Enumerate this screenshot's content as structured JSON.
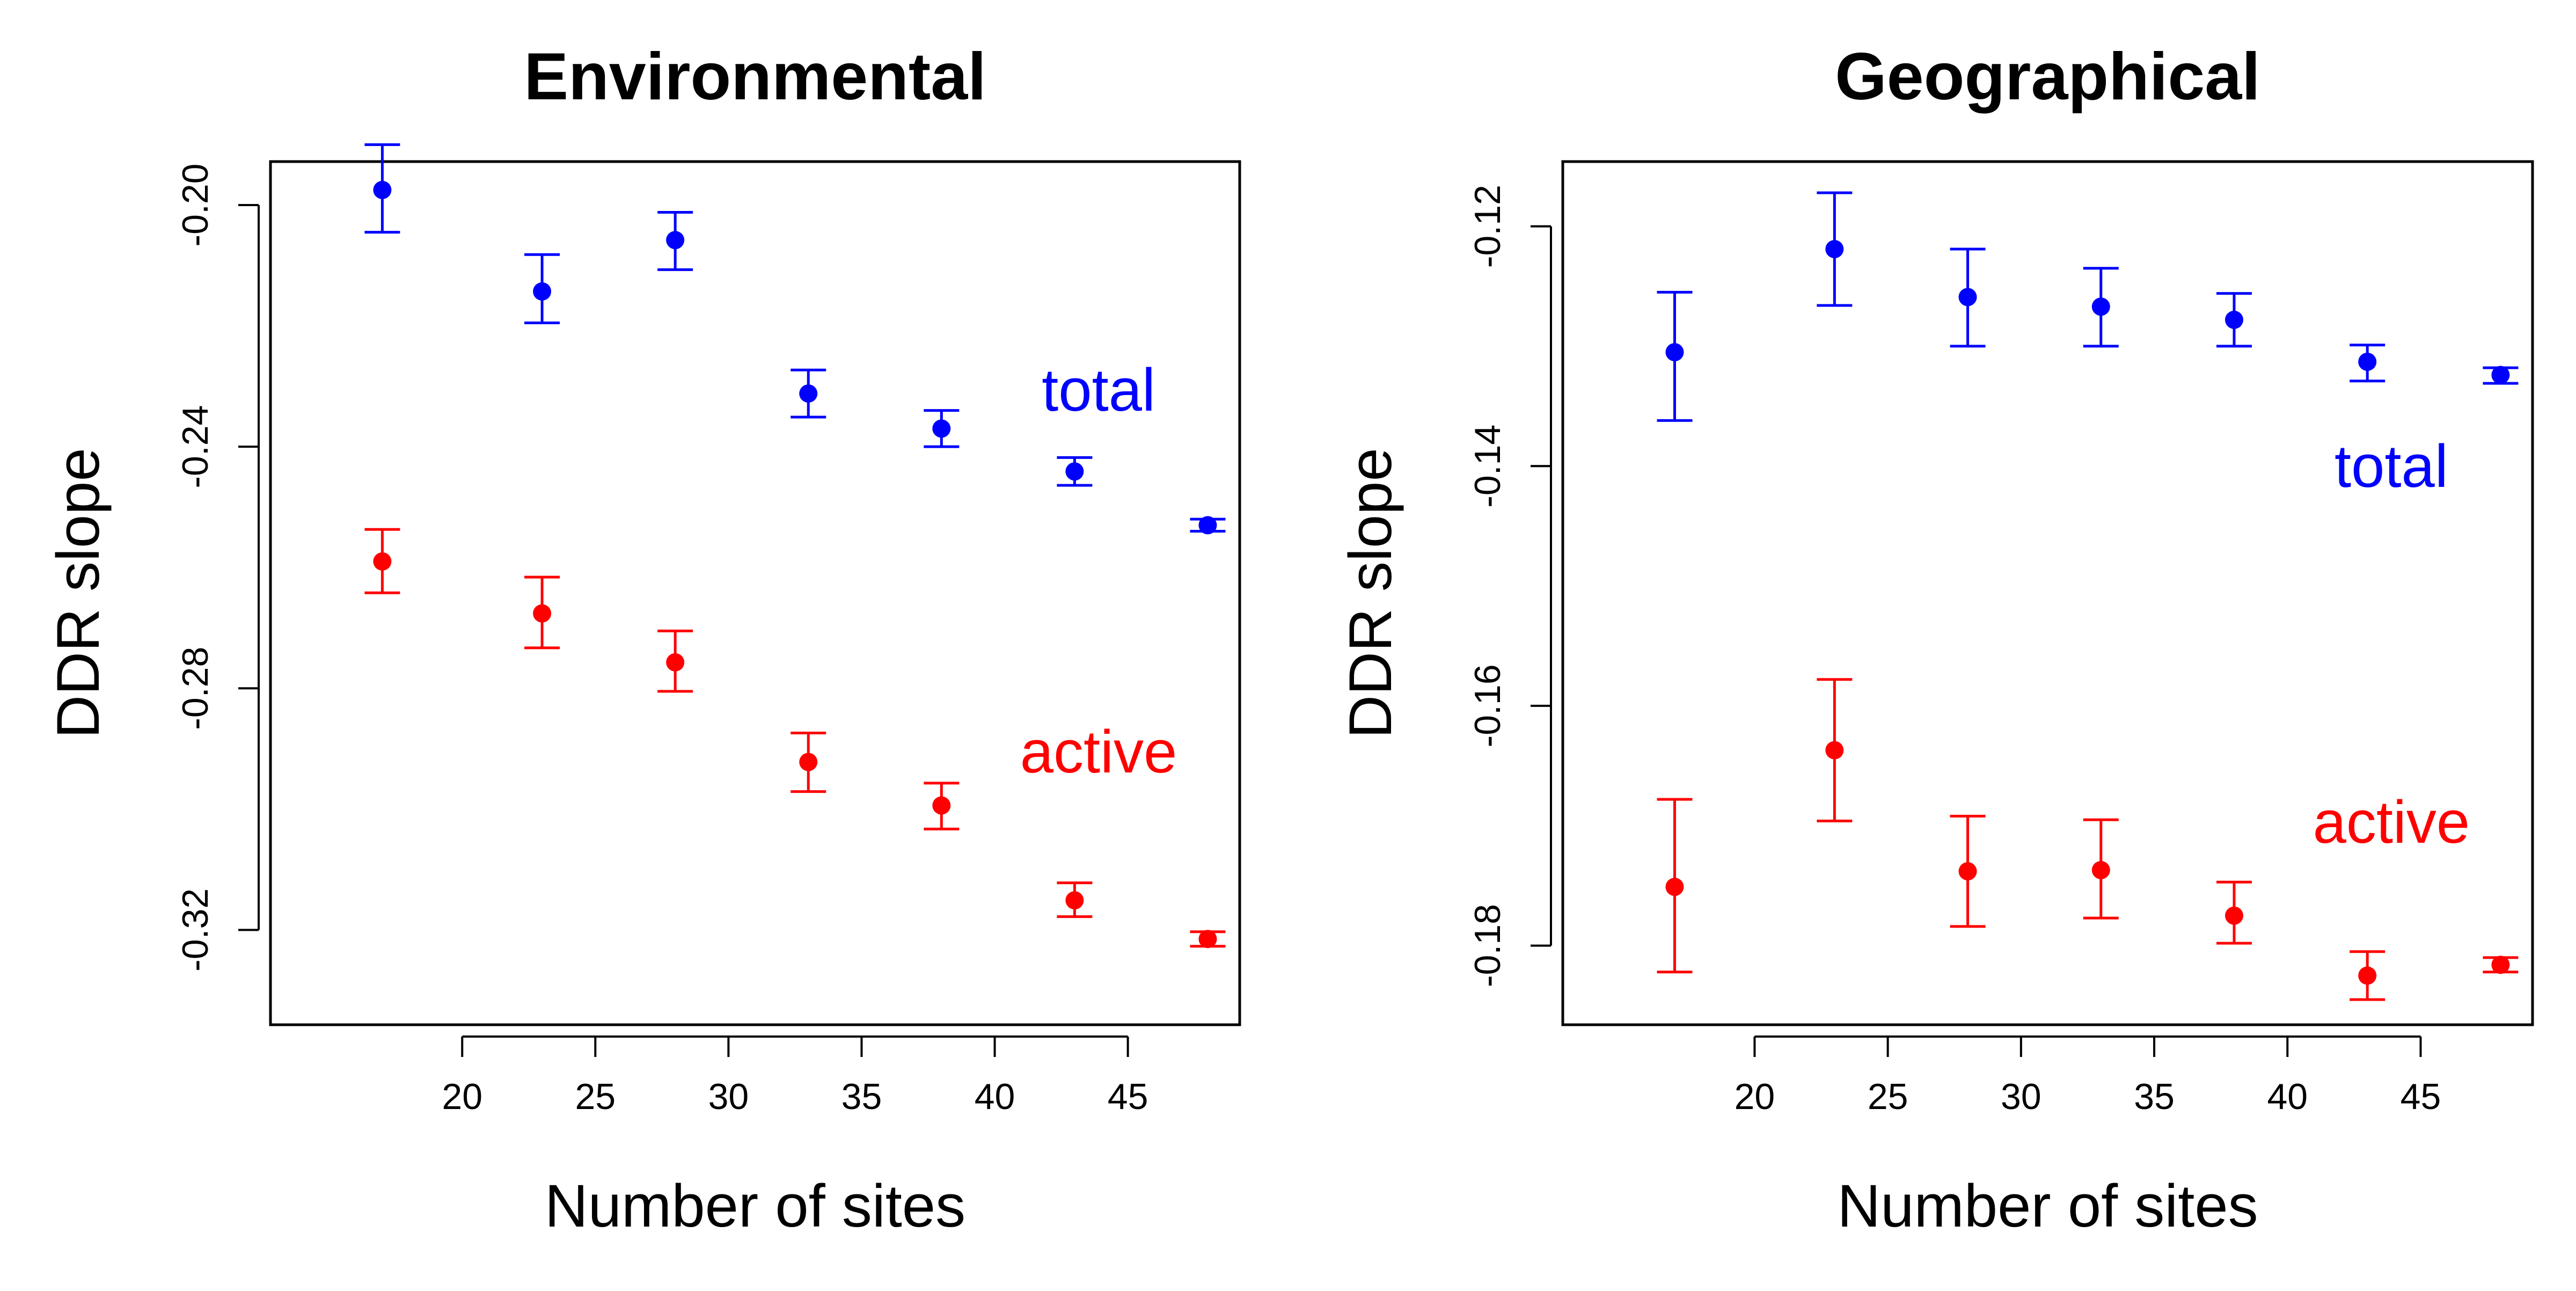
{
  "chart_data": [
    {
      "type": "scatter",
      "title": "Environmental",
      "xlabel": "Number of sites",
      "ylabel": "DDR slope",
      "xlim": [
        12.8,
        49.2
      ],
      "ylim": [
        -0.3357,
        -0.1928
      ],
      "x_ticks": [
        "20",
        "25",
        "30",
        "35",
        "40",
        "45"
      ],
      "y_ticks": [
        "-0.20",
        "-0.24",
        "-0.28",
        "-0.32"
      ],
      "grid": false,
      "legend": "none",
      "series": [
        {
          "name": "total",
          "color": "#0000ff",
          "label_position": [
            43.9,
            -0.2314
          ],
          "points": [
            {
              "x": 17,
              "y": -0.1975,
              "lo": -0.2045,
              "hi": -0.19
            },
            {
              "x": 23,
              "y": -0.2143,
              "lo": -0.2195,
              "hi": -0.2082
            },
            {
              "x": 28,
              "y": -0.2058,
              "lo": -0.2107,
              "hi": -0.2012
            },
            {
              "x": 33,
              "y": -0.2312,
              "lo": -0.2351,
              "hi": -0.2273
            },
            {
              "x": 38,
              "y": -0.237,
              "lo": -0.24,
              "hi": -0.234
            },
            {
              "x": 43,
              "y": -0.2441,
              "lo": -0.2464,
              "hi": -0.2418
            },
            {
              "x": 48,
              "y": -0.253,
              "lo": -0.254,
              "hi": -0.252
            }
          ]
        },
        {
          "name": "active",
          "color": "#ff0000",
          "label_position": [
            43.9,
            -0.2913
          ],
          "points": [
            {
              "x": 17,
              "y": -0.259,
              "lo": -0.2642,
              "hi": -0.2537
            },
            {
              "x": 23,
              "y": -0.2676,
              "lo": -0.2733,
              "hi": -0.2616
            },
            {
              "x": 28,
              "y": -0.2757,
              "lo": -0.2805,
              "hi": -0.2705
            },
            {
              "x": 33,
              "y": -0.2922,
              "lo": -0.2971,
              "hi": -0.2874
            },
            {
              "x": 38,
              "y": -0.2994,
              "lo": -0.3033,
              "hi": -0.2957
            },
            {
              "x": 43,
              "y": -0.3151,
              "lo": -0.3178,
              "hi": -0.3122
            },
            {
              "x": 48,
              "y": -0.3215,
              "lo": -0.3227,
              "hi": -0.3203
            }
          ]
        }
      ]
    },
    {
      "type": "scatter",
      "title": "Geographical",
      "xlabel": "Number of sites",
      "ylabel": "DDR slope",
      "xlim": [
        12.8,
        49.2
      ],
      "ylim": [
        -0.1866,
        -0.1146
      ],
      "x_ticks": [
        "20",
        "25",
        "30",
        "35",
        "40",
        "45"
      ],
      "y_ticks": [
        "-0.12",
        "-0.14",
        "-0.16",
        "-0.18"
      ],
      "grid": false,
      "legend": "none",
      "series": [
        {
          "name": "total",
          "color": "#0000ff",
          "label_position": [
            43.9,
            -0.1404
          ],
          "points": [
            {
              "x": 17,
              "y": -0.1305,
              "lo": -0.1362,
              "hi": -0.1255
            },
            {
              "x": 23,
              "y": -0.1219,
              "lo": -0.1266,
              "hi": -0.1172
            },
            {
              "x": 28,
              "y": -0.1259,
              "lo": -0.13,
              "hi": -0.1219
            },
            {
              "x": 33,
              "y": -0.1267,
              "lo": -0.13,
              "hi": -0.1235
            },
            {
              "x": 38,
              "y": -0.1278,
              "lo": -0.13,
              "hi": -0.1256
            },
            {
              "x": 43,
              "y": -0.1313,
              "lo": -0.1329,
              "hi": -0.1299
            },
            {
              "x": 48,
              "y": -0.1324,
              "lo": -0.1331,
              "hi": -0.1318
            }
          ]
        },
        {
          "name": "active",
          "color": "#ff0000",
          "label_position": [
            43.9,
            -0.1701
          ],
          "points": [
            {
              "x": 17,
              "y": -0.1751,
              "lo": -0.1822,
              "hi": -0.1678
            },
            {
              "x": 23,
              "y": -0.1637,
              "lo": -0.1696,
              "hi": -0.1578
            },
            {
              "x": 28,
              "y": -0.1738,
              "lo": -0.1784,
              "hi": -0.1692
            },
            {
              "x": 33,
              "y": -0.1737,
              "lo": -0.1777,
              "hi": -0.1695
            },
            {
              "x": 38,
              "y": -0.1775,
              "lo": -0.1798,
              "hi": -0.1747
            },
            {
              "x": 43,
              "y": -0.1825,
              "lo": -0.1845,
              "hi": -0.1805
            },
            {
              "x": 48,
              "y": -0.1816,
              "lo": -0.1822,
              "hi": -0.181
            }
          ]
        }
      ]
    }
  ]
}
